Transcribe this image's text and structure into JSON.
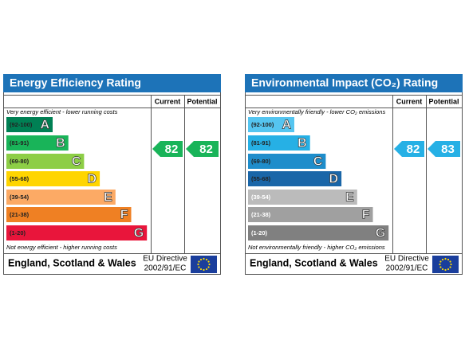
{
  "panels": [
    {
      "title": "Energy Efficiency Rating",
      "current_header": "Current",
      "potential_header": "Potential",
      "top_note": "Very energy efficient - lower running costs",
      "bottom_note": "Not energy efficient - higher running costs",
      "bands": [
        {
          "range": "(92-100)",
          "letter": "A",
          "color": "#008054"
        },
        {
          "range": "(81-91)",
          "letter": "B",
          "color": "#19b459"
        },
        {
          "range": "(69-80)",
          "letter": "C",
          "color": "#8dce46"
        },
        {
          "range": "(55-68)",
          "letter": "D",
          "color": "#ffd500"
        },
        {
          "range": "(39-54)",
          "letter": "E",
          "color": "#fcaa65"
        },
        {
          "range": "(21-38)",
          "letter": "F",
          "color": "#ef8023"
        },
        {
          "range": "(1-20)",
          "letter": "G",
          "color": "#e9153b"
        }
      ],
      "current": 82,
      "potential": 82,
      "arrow_color": "#19b459",
      "footer": "England, Scotland & Wales",
      "directive_line1": "EU Directive",
      "directive_line2": "2002/91/EC"
    },
    {
      "title": "Environmental Impact (CO₂) Rating",
      "current_header": "Current",
      "potential_header": "Potential",
      "top_note": "Very environmentally friendly - lower CO₂ emissions",
      "bottom_note": "Not environmentally friendly - higher CO₂ emissions",
      "bands": [
        {
          "range": "(92-100)",
          "letter": "A",
          "color": "#55c5f0"
        },
        {
          "range": "(81-91)",
          "letter": "B",
          "color": "#26b0e5"
        },
        {
          "range": "(69-80)",
          "letter": "C",
          "color": "#1e8dcb"
        },
        {
          "range": "(55-68)",
          "letter": "D",
          "color": "#1a66a8"
        },
        {
          "range": "(39-54)",
          "letter": "E",
          "color": "#bbbbbb"
        },
        {
          "range": "(21-38)",
          "letter": "F",
          "color": "#a0a0a0"
        },
        {
          "range": "(1-20)",
          "letter": "G",
          "color": "#808080"
        }
      ],
      "current": 82,
      "potential": 83,
      "arrow_color": "#26b0e5",
      "footer": "England, Scotland & Wales",
      "directive_line1": "EU Directive",
      "directive_line2": "2002/91/EC"
    }
  ]
}
